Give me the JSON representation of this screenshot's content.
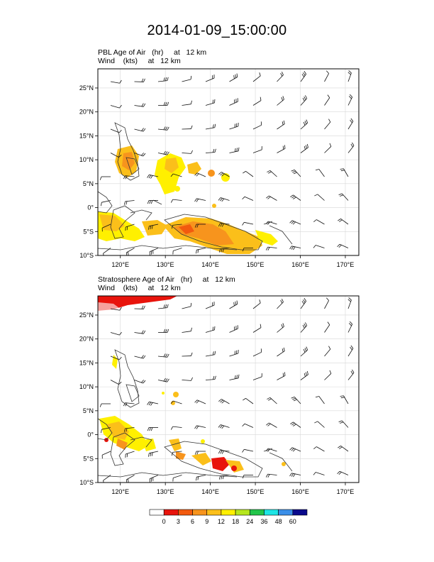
{
  "title": "2014-01-09_15:00:00",
  "panels": [
    {
      "field_label": "PBL Age of Air   (hr)     at   12 km",
      "wind_label": "Wind    (kts)     at   12 km",
      "lat_ticks": [
        "25°N",
        "20°N",
        "15°N",
        "10°N",
        "5°N",
        "0°",
        "5°S",
        "10°S"
      ],
      "lon_ticks": [
        "120°E",
        "130°E",
        "140°E",
        "150°E",
        "160°E",
        "170°E"
      ]
    },
    {
      "field_label": "Stratosphere Age of Air   (hr)     at   12 km",
      "wind_label": "Wind    (kts)     at   12 km",
      "lat_ticks": [
        "25°N",
        "20°N",
        "15°N",
        "10°N",
        "5°N",
        "0°",
        "5°S",
        "10°S"
      ],
      "lon_ticks": [
        "120°E",
        "130°E",
        "140°E",
        "150°E",
        "160°E",
        "170°E"
      ]
    }
  ],
  "colorbar": {
    "labels": [
      "0",
      "3",
      "6",
      "9",
      "12",
      "18",
      "24",
      "36",
      "48",
      "60"
    ],
    "colors": [
      "#ffffff",
      "#e8140c",
      "#f25a0e",
      "#f7941d",
      "#fbbf1a",
      "#fff000",
      "#b5e61d",
      "#22c54a",
      "#1ee5e5",
      "#3b8fe8",
      "#0a0a8c"
    ]
  },
  "map": {
    "lon_range": [
      115,
      173
    ],
    "lat_range": [
      -10,
      29
    ],
    "grid_color": "#d8d8d8"
  }
}
